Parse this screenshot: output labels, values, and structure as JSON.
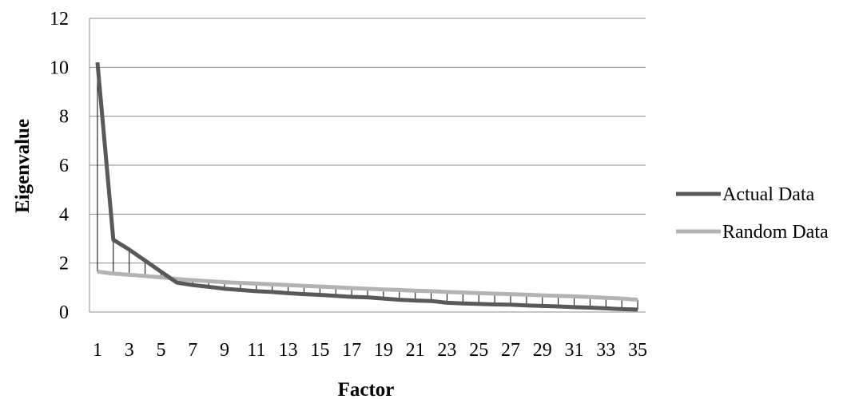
{
  "chart_data": {
    "type": "line",
    "xlabel": "Factor",
    "ylabel": "Eigenvalue",
    "ylim": [
      0,
      12
    ],
    "yticks": [
      "0",
      "2",
      "4",
      "6",
      "8",
      "10",
      "12"
    ],
    "xtick_labels": [
      "1",
      "3",
      "5",
      "7",
      "9",
      "11",
      "13",
      "15",
      "17",
      "19",
      "21",
      "23",
      "25",
      "27",
      "29",
      "31",
      "33",
      "35"
    ],
    "x": [
      1,
      2,
      3,
      4,
      5,
      6,
      7,
      8,
      9,
      10,
      11,
      12,
      13,
      14,
      15,
      16,
      17,
      18,
      19,
      20,
      21,
      22,
      23,
      24,
      25,
      26,
      27,
      28,
      29,
      30,
      31,
      32,
      33,
      34,
      35
    ],
    "grid": "horizontal",
    "legend_position": "right",
    "series": [
      {
        "name": "Actual Data",
        "color": "#595959",
        "values": [
          10.2,
          2.95,
          2.55,
          2.1,
          1.65,
          1.2,
          1.1,
          1.03,
          0.95,
          0.9,
          0.85,
          0.82,
          0.77,
          0.73,
          0.7,
          0.66,
          0.62,
          0.6,
          0.55,
          0.5,
          0.47,
          0.45,
          0.38,
          0.35,
          0.33,
          0.31,
          0.3,
          0.27,
          0.25,
          0.23,
          0.2,
          0.18,
          0.15,
          0.12,
          0.1
        ]
      },
      {
        "name": "Random Data",
        "color": "#b3b3b3",
        "values": [
          1.65,
          1.57,
          1.52,
          1.47,
          1.42,
          1.35,
          1.3,
          1.26,
          1.22,
          1.19,
          1.16,
          1.13,
          1.1,
          1.07,
          1.04,
          1.01,
          0.98,
          0.95,
          0.92,
          0.9,
          0.87,
          0.85,
          0.82,
          0.8,
          0.77,
          0.75,
          0.73,
          0.71,
          0.68,
          0.66,
          0.64,
          0.61,
          0.58,
          0.55,
          0.5
        ]
      }
    ]
  }
}
